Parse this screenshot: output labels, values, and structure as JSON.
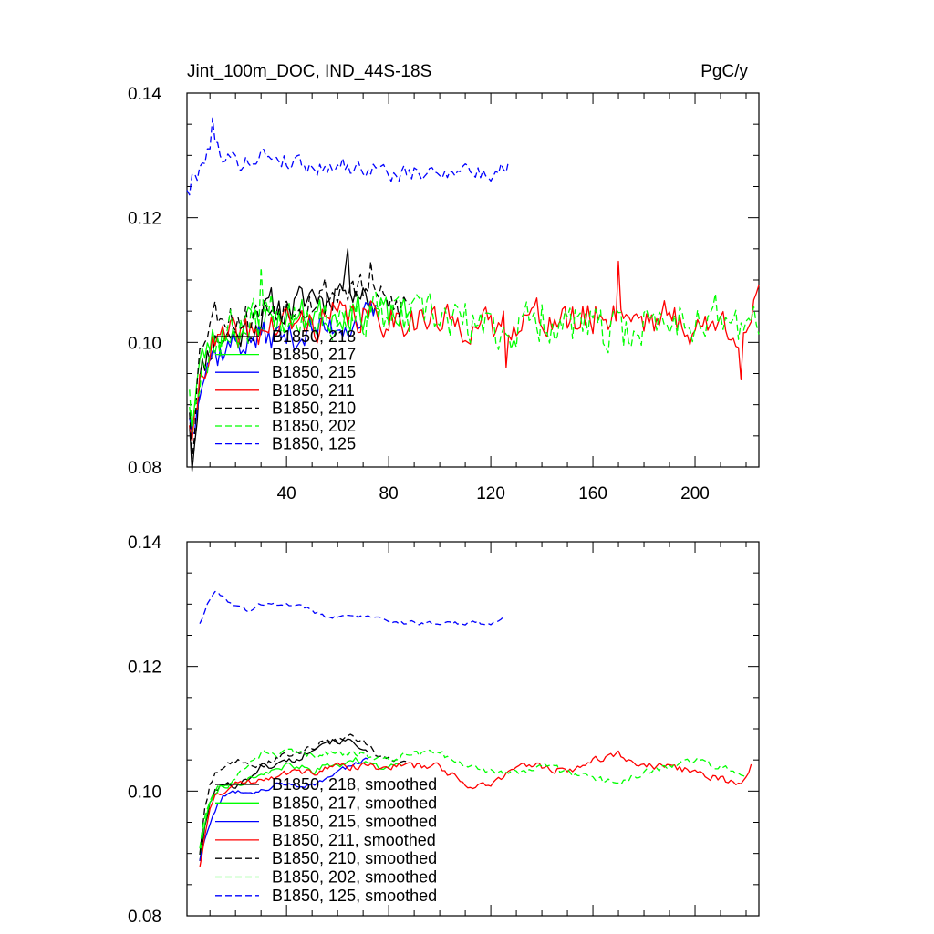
{
  "title_left": "Jint_100m_DOC, IND_44S-18S",
  "title_right": "PgC/y",
  "colors": {
    "black": "#000000",
    "green": "#00ff00",
    "blue": "#0000ff",
    "red": "#ff0000"
  },
  "chart_data": [
    {
      "type": "line",
      "panel": "top",
      "xlim": [
        1,
        225
      ],
      "ylim": [
        0.08,
        0.14
      ],
      "x_ticks": [
        40,
        80,
        120,
        160,
        200
      ],
      "x_tick_labels": [
        "40",
        "80",
        "120",
        "160",
        "200"
      ],
      "y_ticks": [
        0.08,
        0.1,
        0.12,
        0.14
      ],
      "y_tick_labels": [
        "0.08",
        "0.10",
        "0.12",
        "0.14"
      ],
      "series": [
        {
          "name": "B1850, 218",
          "color": "black",
          "dash": "solid",
          "seed": 11,
          "x": [
            2,
            3,
            4,
            5,
            6,
            8,
            10,
            13,
            16,
            20,
            25,
            30,
            35,
            40,
            45,
            50,
            55,
            60,
            65,
            70,
            75
          ],
          "y": [
            0.088,
            0.081,
            0.085,
            0.09,
            0.094,
            0.097,
            0.099,
            0.101,
            0.101,
            0.101,
            0.102,
            0.104,
            0.106,
            0.105,
            0.106,
            0.108,
            0.107,
            0.109,
            0.11,
            0.108,
            0.106
          ],
          "noise": 0.0035,
          "spikes": [
            [
              64,
              0.115
            ]
          ]
        },
        {
          "name": "B1850, 217",
          "color": "green",
          "dash": "solid",
          "seed": 23,
          "x": [
            2,
            3,
            4,
            5,
            6,
            8,
            10,
            13,
            16,
            20,
            25,
            30,
            35,
            40,
            45,
            50,
            55,
            60,
            65,
            70,
            75,
            80,
            85,
            90
          ],
          "y": [
            0.091,
            0.087,
            0.09,
            0.094,
            0.096,
            0.098,
            0.1,
            0.101,
            0.102,
            0.102,
            0.103,
            0.104,
            0.104,
            0.104,
            0.104,
            0.105,
            0.104,
            0.105,
            0.105,
            0.105,
            0.105,
            0.104,
            0.104,
            0.104
          ],
          "noise": 0.0035,
          "spikes": []
        },
        {
          "name": "B1850, 215",
          "color": "blue",
          "dash": "solid",
          "seed": 37,
          "x": [
            2,
            3,
            4,
            5,
            6,
            8,
            10,
            13,
            16,
            20,
            25,
            30,
            35,
            40,
            45,
            50,
            55,
            60,
            65,
            70,
            75
          ],
          "y": [
            0.089,
            0.085,
            0.087,
            0.092,
            0.094,
            0.096,
            0.098,
            0.098,
            0.099,
            0.1,
            0.1,
            0.101,
            0.101,
            0.101,
            0.101,
            0.102,
            0.102,
            0.103,
            0.103,
            0.104,
            0.104
          ],
          "noise": 0.003,
          "spikes": []
        },
        {
          "name": "B1850, 211",
          "color": "red",
          "dash": "solid",
          "seed": 41,
          "x": [
            2,
            3,
            4,
            5,
            6,
            8,
            10,
            15,
            20,
            30,
            40,
            50,
            60,
            70,
            80,
            90,
            100,
            110,
            120,
            130,
            140,
            150,
            160,
            170,
            180,
            190,
            200,
            210,
            220,
            225
          ],
          "y": [
            0.088,
            0.082,
            0.086,
            0.09,
            0.094,
            0.097,
            0.099,
            0.1,
            0.101,
            0.102,
            0.103,
            0.103,
            0.104,
            0.104,
            0.104,
            0.104,
            0.103,
            0.103,
            0.102,
            0.104,
            0.104,
            0.103,
            0.104,
            0.105,
            0.104,
            0.104,
            0.102,
            0.103,
            0.102,
            0.106
          ],
          "noise": 0.0035,
          "spikes": [
            [
              170,
              0.113
            ],
            [
              218,
              0.094
            ],
            [
              126,
              0.096
            ]
          ]
        },
        {
          "name": "B1850, 210",
          "color": "black",
          "dash": "dashed",
          "seed": 53,
          "x": [
            2,
            3,
            4,
            5,
            6,
            8,
            10,
            13,
            16,
            20,
            25,
            30,
            35,
            40,
            45,
            50,
            55,
            60,
            65,
            70,
            75,
            80,
            85,
            88
          ],
          "y": [
            0.09,
            0.084,
            0.088,
            0.094,
            0.098,
            0.102,
            0.104,
            0.105,
            0.105,
            0.104,
            0.104,
            0.105,
            0.106,
            0.106,
            0.107,
            0.107,
            0.108,
            0.108,
            0.109,
            0.108,
            0.107,
            0.106,
            0.106,
            0.106
          ],
          "noise": 0.0035,
          "spikes": [
            [
              73,
              0.113
            ]
          ]
        },
        {
          "name": "B1850, 202",
          "color": "green",
          "dash": "dashed",
          "seed": 67,
          "x": [
            2,
            3,
            4,
            5,
            6,
            8,
            10,
            15,
            20,
            30,
            40,
            50,
            60,
            70,
            80,
            90,
            100,
            110,
            120,
            130,
            140,
            150,
            160,
            170,
            180,
            190,
            200,
            210,
            220,
            225
          ],
          "y": [
            0.094,
            0.087,
            0.089,
            0.093,
            0.096,
            0.098,
            0.1,
            0.101,
            0.102,
            0.105,
            0.105,
            0.105,
            0.104,
            0.105,
            0.104,
            0.104,
            0.104,
            0.103,
            0.102,
            0.102,
            0.104,
            0.103,
            0.102,
            0.101,
            0.103,
            0.104,
            0.104,
            0.104,
            0.102,
            0.104
          ],
          "noise": 0.0045,
          "spikes": [
            [
              30,
              0.112
            ]
          ]
        },
        {
          "name": "B1850, 125",
          "color": "blue",
          "dash": "dashed",
          "seed": 79,
          "x": [
            1,
            2,
            3,
            5,
            8,
            10,
            13,
            16,
            20,
            25,
            30,
            35,
            40,
            45,
            50,
            55,
            60,
            65,
            70,
            75,
            80,
            85,
            90,
            95,
            100,
            105,
            110,
            115,
            120,
            125,
            127
          ],
          "y": [
            0.125,
            0.124,
            0.126,
            0.127,
            0.13,
            0.132,
            0.131,
            0.13,
            0.129,
            0.129,
            0.13,
            0.13,
            0.129,
            0.129,
            0.128,
            0.128,
            0.129,
            0.128,
            0.128,
            0.128,
            0.127,
            0.127,
            0.127,
            0.127,
            0.127,
            0.128,
            0.128,
            0.127,
            0.127,
            0.128,
            0.129
          ],
          "noise": 0.0017,
          "spikes": [
            [
              11,
              0.136
            ]
          ]
        }
      ]
    },
    {
      "type": "line",
      "panel": "bottom",
      "xlim": [
        1,
        225
      ],
      "ylim": [
        0.08,
        0.14
      ],
      "x_ticks": [
        40,
        80,
        120,
        160,
        200
      ],
      "y_ticks": [
        0.08,
        0.1,
        0.12,
        0.14
      ],
      "y_tick_labels": [
        "0.08",
        "0.10",
        "0.12",
        "0.14"
      ],
      "series": [
        {
          "name": "B1850, 218, smoothed",
          "color": "black",
          "dash": "solid",
          "seed": 101,
          "x": [
            6,
            8,
            10,
            12,
            15,
            20,
            25,
            30,
            35,
            40,
            45,
            50,
            55,
            60,
            65,
            70,
            72
          ],
          "y": [
            0.089,
            0.094,
            0.098,
            0.1,
            0.101,
            0.101,
            0.102,
            0.104,
            0.104,
            0.105,
            0.105,
            0.107,
            0.108,
            0.108,
            0.108,
            0.107,
            0.106
          ],
          "noise": 0.0006,
          "spikes": []
        },
        {
          "name": "B1850, 217, smoothed",
          "color": "green",
          "dash": "solid",
          "seed": 113,
          "x": [
            6,
            8,
            10,
            12,
            15,
            20,
            25,
            30,
            35,
            40,
            45,
            50,
            55,
            60,
            65,
            70,
            75,
            80,
            85
          ],
          "y": [
            0.09,
            0.095,
            0.098,
            0.1,
            0.101,
            0.101,
            0.102,
            0.103,
            0.103,
            0.104,
            0.104,
            0.103,
            0.104,
            0.104,
            0.105,
            0.105,
            0.104,
            0.104,
            0.104
          ],
          "noise": 0.0006,
          "spikes": []
        },
        {
          "name": "B1850, 215, smoothed",
          "color": "blue",
          "dash": "solid",
          "seed": 127,
          "x": [
            6,
            8,
            10,
            12,
            15,
            20,
            25,
            30,
            35,
            40,
            45,
            50,
            55,
            60,
            65,
            70,
            72
          ],
          "y": [
            0.089,
            0.092,
            0.095,
            0.097,
            0.099,
            0.1,
            0.1,
            0.1,
            0.101,
            0.101,
            0.101,
            0.101,
            0.102,
            0.103,
            0.104,
            0.105,
            0.105
          ],
          "noise": 0.0005,
          "spikes": []
        },
        {
          "name": "B1850, 211, smoothed",
          "color": "red",
          "dash": "solid",
          "seed": 131,
          "x": [
            6,
            8,
            10,
            12,
            15,
            20,
            30,
            40,
            50,
            60,
            70,
            80,
            90,
            100,
            110,
            120,
            130,
            140,
            150,
            160,
            170,
            180,
            190,
            200,
            210,
            218,
            222
          ],
          "y": [
            0.088,
            0.093,
            0.097,
            0.099,
            0.1,
            0.101,
            0.102,
            0.103,
            0.103,
            0.104,
            0.104,
            0.104,
            0.104,
            0.104,
            0.101,
            0.101,
            0.104,
            0.104,
            0.103,
            0.105,
            0.106,
            0.104,
            0.104,
            0.103,
            0.102,
            0.101,
            0.104
          ],
          "noise": 0.0007,
          "spikes": []
        },
        {
          "name": "B1850, 210, smoothed",
          "color": "black",
          "dash": "dashed",
          "seed": 149,
          "x": [
            6,
            8,
            10,
            12,
            15,
            20,
            25,
            30,
            35,
            40,
            45,
            50,
            55,
            60,
            65,
            70,
            75,
            80,
            85,
            88
          ],
          "y": [
            0.09,
            0.097,
            0.101,
            0.103,
            0.104,
            0.105,
            0.104,
            0.104,
            0.105,
            0.106,
            0.106,
            0.107,
            0.108,
            0.108,
            0.109,
            0.108,
            0.106,
            0.105,
            0.105,
            0.105
          ],
          "noise": 0.0006,
          "spikes": []
        },
        {
          "name": "B1850, 202, smoothed",
          "color": "green",
          "dash": "dashed",
          "seed": 151,
          "x": [
            6,
            8,
            10,
            12,
            15,
            20,
            30,
            40,
            50,
            60,
            70,
            80,
            90,
            100,
            110,
            120,
            130,
            140,
            150,
            160,
            170,
            180,
            190,
            200,
            210,
            220
          ],
          "y": [
            0.091,
            0.096,
            0.099,
            0.1,
            0.101,
            0.102,
            0.106,
            0.106,
            0.106,
            0.106,
            0.106,
            0.105,
            0.106,
            0.106,
            0.104,
            0.103,
            0.103,
            0.104,
            0.103,
            0.102,
            0.101,
            0.103,
            0.104,
            0.105,
            0.104,
            0.102
          ],
          "noise": 0.0007,
          "spikes": []
        },
        {
          "name": "B1850, 125, smoothed",
          "color": "blue",
          "dash": "dashed",
          "seed": 163,
          "x": [
            6,
            8,
            10,
            12,
            15,
            18,
            20,
            25,
            30,
            35,
            40,
            45,
            50,
            55,
            60,
            65,
            70,
            75,
            80,
            85,
            90,
            95,
            100,
            105,
            110,
            115,
            120,
            125
          ],
          "y": [
            0.127,
            0.129,
            0.131,
            0.132,
            0.131,
            0.13,
            0.13,
            0.129,
            0.13,
            0.13,
            0.13,
            0.13,
            0.129,
            0.128,
            0.128,
            0.128,
            0.128,
            0.128,
            0.127,
            0.127,
            0.127,
            0.127,
            0.127,
            0.127,
            0.127,
            0.127,
            0.127,
            0.128
          ],
          "noise": 0.0004,
          "spikes": []
        }
      ]
    }
  ]
}
